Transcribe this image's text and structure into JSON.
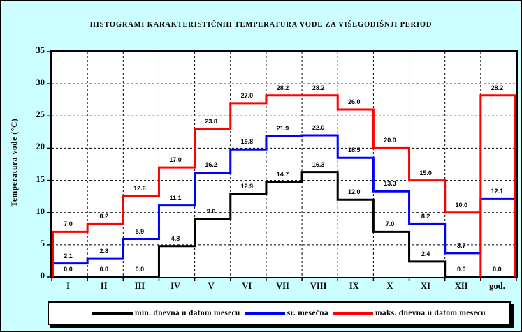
{
  "title": "HISTOGRAMI KARAKTERISTIČNIH TEMPERATURA VODE ZA VIŠEGODIŠNJI PERIOD",
  "y_axis": {
    "label": "Temperatura vode (°C)",
    "ticks": [
      0,
      5,
      10,
      15,
      20,
      25,
      30,
      35
    ]
  },
  "chart_data": {
    "type": "line",
    "step": true,
    "title": "HISTOGRAMI KARAKTERISTIČNIH TEMPERATURA VODE ZA VIŠEGODIŠNJI PERIOD",
    "xlabel": "",
    "ylabel": "Temperatura vode (°C)",
    "ylim": [
      0,
      35
    ],
    "grid": true,
    "legend_position": "bottom",
    "categories": [
      "I",
      "II",
      "III",
      "IV",
      "V",
      "VI",
      "VII",
      "VIII",
      "IX",
      "X",
      "XI",
      "XII",
      "god."
    ],
    "series": [
      {
        "name": "min. dnevna u datom mesecu",
        "color": "#000000",
        "edge_drops": false,
        "values": [
          0.0,
          0.0,
          0.0,
          4.8,
          9.0,
          12.9,
          14.7,
          16.3,
          12.0,
          7.0,
          2.4,
          0.0,
          0.0
        ]
      },
      {
        "name": "sr. mesečna",
        "color": "#0000FF",
        "edge_drops": false,
        "values": [
          2.1,
          2.8,
          5.9,
          11.1,
          16.2,
          19.8,
          21.9,
          22.0,
          18.5,
          13.3,
          8.2,
          3.7,
          12.1
        ]
      },
      {
        "name": "maks. dnevna u datom mesecu",
        "color": "#FF0000",
        "edge_drops": true,
        "values": [
          7.0,
          8.2,
          12.6,
          17.0,
          23.0,
          27.0,
          28.2,
          28.2,
          26.0,
          20.0,
          15.0,
          10.0,
          28.2
        ]
      }
    ]
  },
  "colors": {
    "background": "#CCFFFF",
    "plot_background": "#FFFFFF",
    "grid": "#000000",
    "series_min": "#000000",
    "series_avg": "#0000FF",
    "series_max": "#FF0000"
  }
}
